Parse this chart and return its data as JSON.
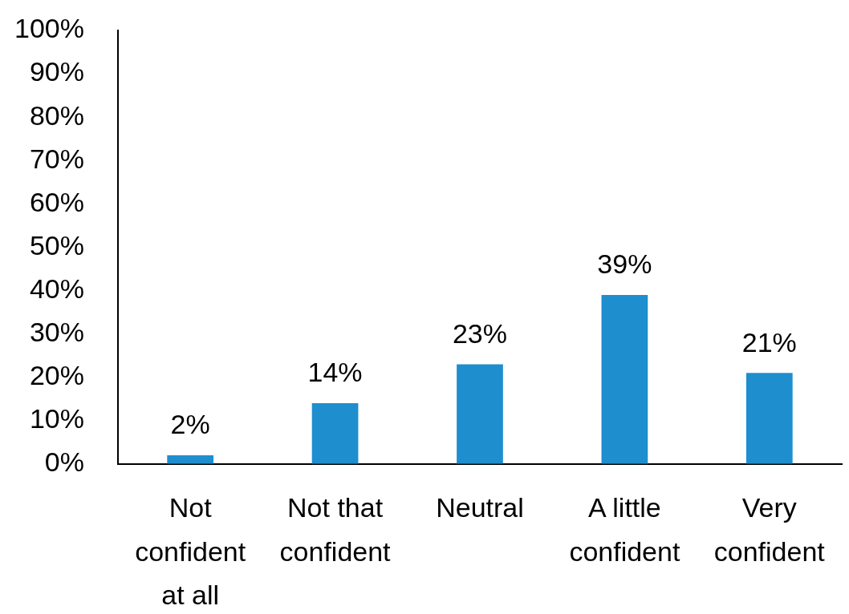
{
  "chart_data": {
    "type": "bar",
    "categories": [
      "Not confident at all",
      "Not that confident",
      "Neutral",
      "A little confident",
      "Very confident"
    ],
    "values": [
      2,
      14,
      23,
      39,
      21
    ],
    "color": "#1e8ecf",
    "value_labels": [
      "2%",
      "14%",
      "23%",
      "39%",
      "21%"
    ],
    "ylim": [
      0,
      100
    ],
    "yticks": [
      {
        "value": 0,
        "label": "0%"
      },
      {
        "value": 10,
        "label": "10%"
      },
      {
        "value": 20,
        "label": "20%"
      },
      {
        "value": 30,
        "label": "30%"
      },
      {
        "value": 40,
        "label": "40%"
      },
      {
        "value": 50,
        "label": "50%"
      },
      {
        "value": 60,
        "label": "60%"
      },
      {
        "value": 70,
        "label": "70%"
      },
      {
        "value": 80,
        "label": "80%"
      },
      {
        "value": 90,
        "label": "90%"
      },
      {
        "value": 100,
        "label": "100%"
      }
    ],
    "grid": false,
    "legend": false
  }
}
